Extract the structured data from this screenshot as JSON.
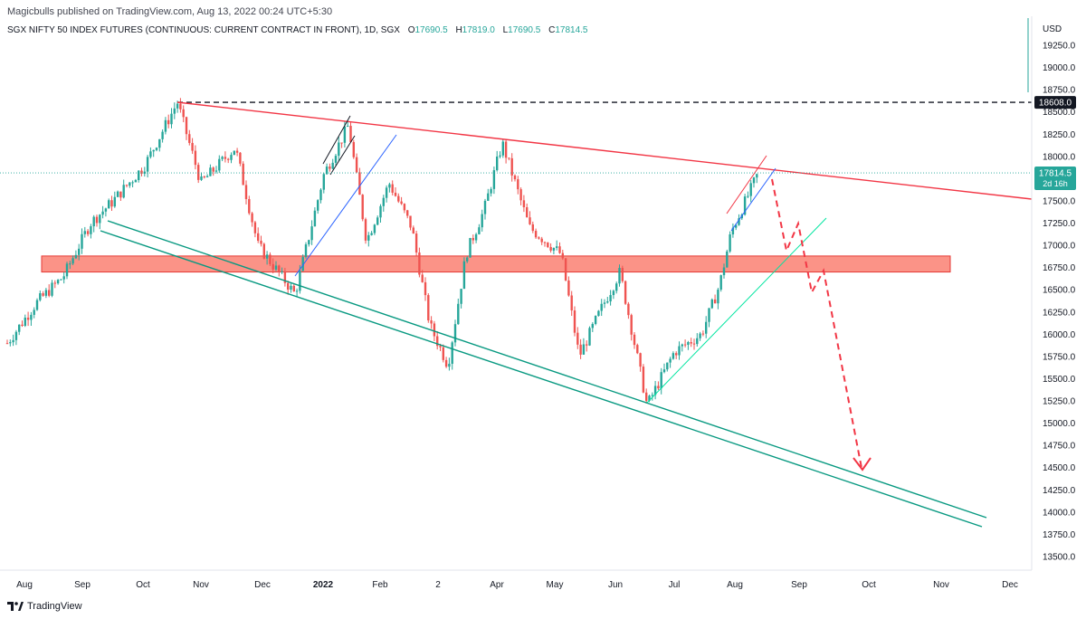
{
  "header": {
    "text": "Magicbulls published on TradingView.com, Aug 13, 2022 00:24 UTC+5:30"
  },
  "symbol": {
    "name": "SGX NIFTY 50 INDEX FUTURES (CONTINUOUS: CURRENT CONTRACT IN FRONT), 1D, SGX",
    "open_label": "O",
    "open": "17690.5",
    "high_label": "H",
    "high": "17819.0",
    "low_label": "L",
    "low": "17690.5",
    "close_label": "C",
    "close": "17814.5"
  },
  "footer": {
    "brand": "TradingView"
  },
  "colors": {
    "up": "#26a69a",
    "down": "#ef5350",
    "resistance": "#f23645",
    "support": "#089981",
    "zone_fill": "#fa8072",
    "zone_stroke": "#e53935",
    "blue": "#2962ff",
    "cyan": "#00e5a0"
  },
  "chart_data": {
    "type": "candlestick",
    "currency": "USD",
    "y_ticks": [
      "19250.0",
      "19000.0",
      "18750.0",
      "18500.0",
      "18250.0",
      "18000.0",
      "17750.0",
      "17500.0",
      "17250.0",
      "17000.0",
      "16750.0",
      "16500.0",
      "16250.0",
      "16000.0",
      "15750.0",
      "15500.0",
      "15250.0",
      "15000.0",
      "14750.0",
      "14500.0",
      "14250.0",
      "14000.0",
      "13750.0",
      "13500.0"
    ],
    "x_labels": [
      "Aug",
      "Sep",
      "Oct",
      "Nov",
      "Dec",
      "2022",
      "Feb",
      "2",
      "Apr",
      "May",
      "Jun",
      "Jul",
      "Aug",
      "Sep",
      "Oct",
      "Nov",
      "Dec"
    ],
    "price_badge": {
      "value": "18608.0"
    },
    "last_price": {
      "value": "17814.5",
      "countdown": "2d 16h"
    },
    "key_points": [
      {
        "date": "2021-08",
        "price": 15900
      },
      {
        "date": "2021-10-19",
        "price": 18608
      },
      {
        "date": "2021-12-20",
        "price": 16450
      },
      {
        "date": "2022-01-18",
        "price": 18350
      },
      {
        "date": "2022-03-08",
        "price": 15650
      },
      {
        "date": "2022-04-04",
        "price": 18150
      },
      {
        "date": "2022-06-17",
        "price": 15200
      },
      {
        "date": "2022-08-12",
        "price": 17814.5
      }
    ]
  }
}
